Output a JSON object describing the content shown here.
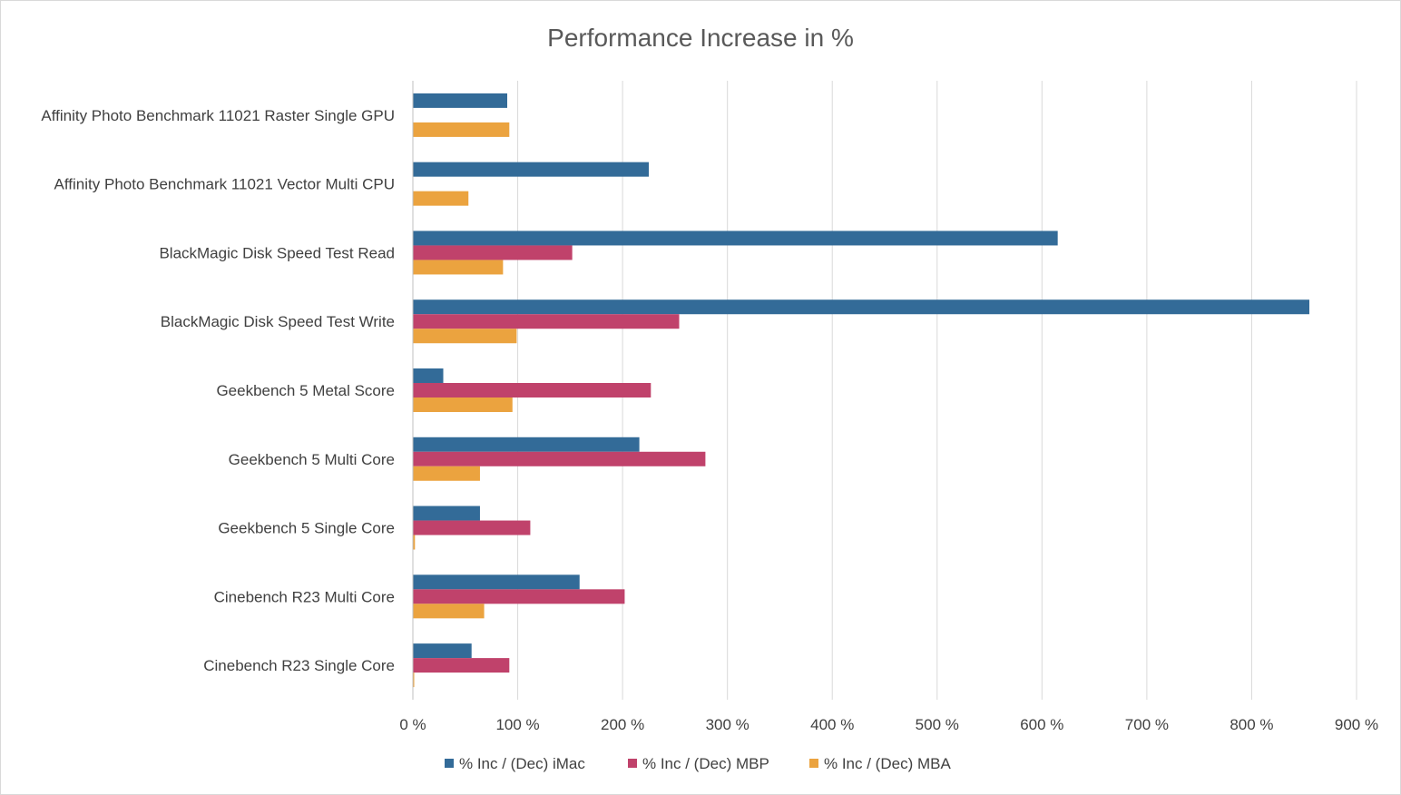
{
  "chart_data": {
    "type": "bar",
    "orientation": "horizontal",
    "title": "Performance Increase in %",
    "xlabel": "",
    "ylabel": "",
    "xlim": [
      0,
      900
    ],
    "x_ticks": [
      0,
      100,
      200,
      300,
      400,
      500,
      600,
      700,
      800,
      900
    ],
    "x_tick_labels": [
      "0 %",
      "100 %",
      "200 %",
      "300 %",
      "400 %",
      "500 %",
      "600 %",
      "700 %",
      "800 %",
      "900 %"
    ],
    "grid": "vertical",
    "legend_position": "bottom",
    "categories": [
      "Affinity Photo Benchmark 11021 Raster Single GPU",
      "Affinity Photo Benchmark 11021 Vector Multi CPU",
      "BlackMagic Disk Speed Test Read",
      "BlackMagic Disk Speed Test Write",
      "Geekbench 5 Metal Score",
      "Geekbench 5 Multi Core",
      "Geekbench 5 Single Core",
      "Cinebench R23 Multi Core",
      "Cinebench R23 Single Core"
    ],
    "series": [
      {
        "name": "% Inc / (Dec) iMac",
        "color": "#336b98",
        "values": [
          90,
          225,
          615,
          855,
          29,
          216,
          64,
          159,
          56
        ]
      },
      {
        "name": "% Inc / (Dec) MBP",
        "color": "#c0426b",
        "values": [
          0,
          0,
          152,
          254,
          227,
          279,
          112,
          202,
          92
        ]
      },
      {
        "name": "% Inc / (Dec) MBA",
        "color": "#eba33f",
        "values": [
          92,
          53,
          86,
          99,
          95,
          64,
          2,
          68,
          1
        ]
      }
    ]
  }
}
